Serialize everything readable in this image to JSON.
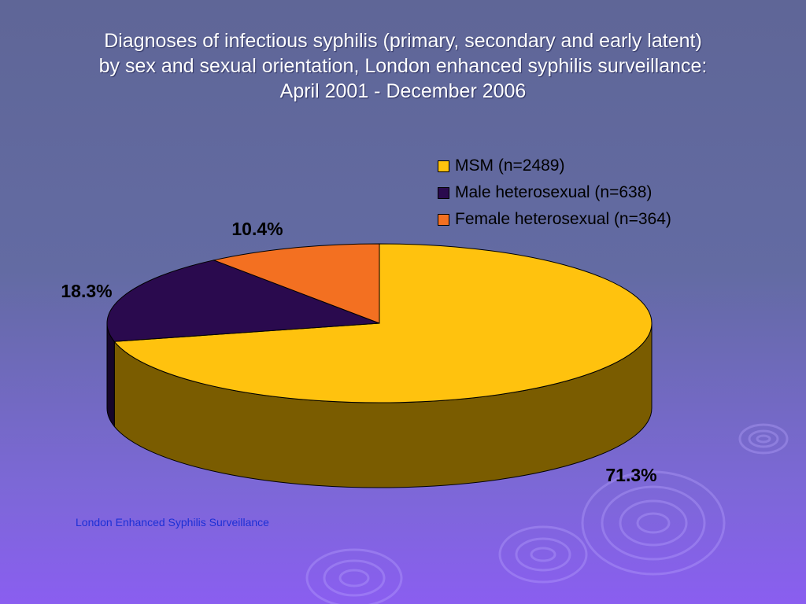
{
  "title_lines": [
    "Diagnoses of infectious syphilis (primary, secondary and early latent)",
    "by sex and sexual orientation, London enhanced syphilis surveillance:",
    "April 2001 - December 2006"
  ],
  "source_text": "London Enhanced Syphilis Surveillance",
  "chart_data": {
    "type": "pie",
    "style": "3d",
    "title": "Diagnoses of infectious syphilis (primary, secondary and early latent) by sex and sexual orientation, London enhanced syphilis surveillance: April 2001 - December 2006",
    "legend_position": "top-right",
    "slices": [
      {
        "label": "MSM (n=2489)",
        "value": 71.3,
        "value_label": "71.3%",
        "color": "#ffc20e",
        "side_color": "#7a5c00"
      },
      {
        "label": "Male heterosexual (n=638)",
        "value": 18.3,
        "value_label": "18.3%",
        "color": "#2a0a4e",
        "side_color": "#16052a"
      },
      {
        "label": "Female heterosexual (n=364)",
        "value": 10.4,
        "value_label": "10.4%",
        "color": "#f37021",
        "side_color": "#8a3a0a"
      }
    ]
  }
}
